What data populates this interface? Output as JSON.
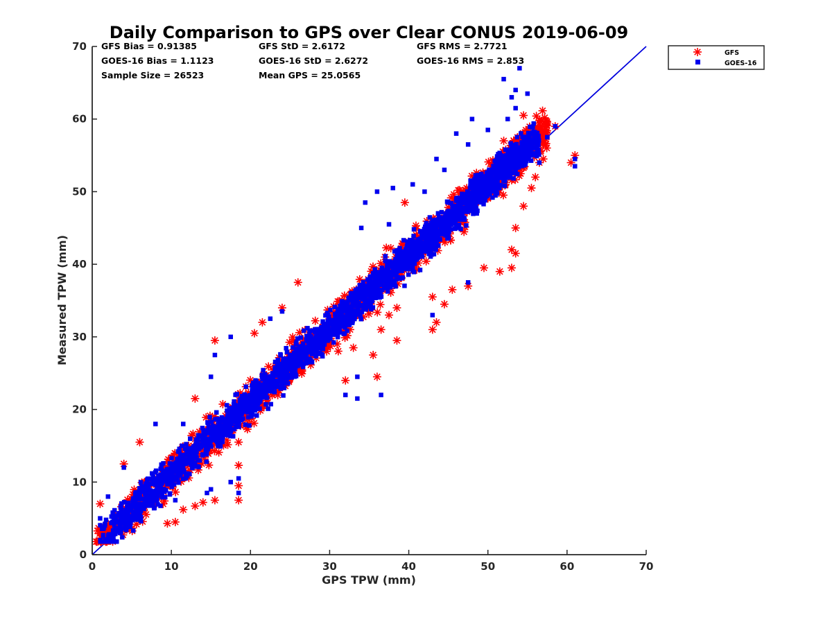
{
  "chart_data": {
    "type": "scatter",
    "title": "Daily Comparison to GPS over Clear CONUS 2019-06-09",
    "xlabel": "GPS TPW (mm)",
    "ylabel": "Measured TPW (mm)",
    "xlim": [
      0,
      70
    ],
    "ylim": [
      0,
      70
    ],
    "xticks": [
      "0",
      "10",
      "20",
      "30",
      "40",
      "50",
      "60",
      "70"
    ],
    "yticks": [
      "0",
      "10",
      "20",
      "30",
      "40",
      "50",
      "60",
      "70"
    ],
    "grid": false,
    "legend_position": "outside top-right",
    "stats": [
      [
        "GFS Bias = 0.91385",
        "GFS StD = 2.6172",
        "GFS RMS = 2.7721"
      ],
      [
        "GOES-16 Bias = 1.1123",
        "GOES-16 StD = 2.6272",
        "GOES-16 RMS = 2.853"
      ],
      [
        "Sample Size = 26523",
        "Mean GPS = 25.0565",
        ""
      ]
    ],
    "reference_line": {
      "name": "1:1 line",
      "color": "#0000dd",
      "x": [
        0,
        70
      ],
      "y": [
        0,
        70
      ]
    },
    "series": [
      {
        "name": "GFS",
        "marker": "asterisk",
        "color": "#ff0000",
        "sample_size": 26523,
        "bias": 0.91385,
        "std": 2.6172,
        "rms": 2.7721,
        "density_band": {
          "x_range": [
            0.5,
            57.5
          ],
          "offset": 1.1,
          "spread": 2.3,
          "count": 1500,
          "seed": 11
        },
        "points": [
          [
            15.5,
            29.5
          ],
          [
            18.5,
            15.5
          ],
          [
            18.5,
            12.3
          ],
          [
            18.5,
            9.5
          ],
          [
            18.5,
            7.5
          ],
          [
            15.5,
            7.5
          ],
          [
            14.0,
            7.2
          ],
          [
            13.0,
            6.7
          ],
          [
            11.5,
            6.2
          ],
          [
            10.5,
            4.5
          ],
          [
            9.5,
            4.3
          ],
          [
            26.0,
            37.5
          ],
          [
            32.0,
            24.0
          ],
          [
            33.0,
            28.5
          ],
          [
            36.0,
            24.5
          ],
          [
            35.5,
            27.5
          ],
          [
            36.5,
            31.0
          ],
          [
            37.5,
            33.0
          ],
          [
            38.5,
            34.0
          ],
          [
            38.5,
            29.5
          ],
          [
            43.0,
            31.0
          ],
          [
            43.5,
            32.0
          ],
          [
            43.0,
            35.5
          ],
          [
            44.5,
            34.5
          ],
          [
            45.5,
            36.5
          ],
          [
            47.5,
            37.0
          ],
          [
            49.5,
            39.5
          ],
          [
            51.5,
            39.0
          ],
          [
            53.0,
            39.5
          ],
          [
            53.5,
            41.5
          ],
          [
            53.5,
            45.0
          ],
          [
            53.0,
            42.0
          ],
          [
            54.5,
            48.0
          ],
          [
            55.5,
            50.5
          ],
          [
            56.0,
            52.0
          ],
          [
            56.5,
            54.0
          ],
          [
            57.0,
            54.5
          ],
          [
            55.0,
            55.5
          ],
          [
            54.5,
            57.5
          ],
          [
            54.5,
            60.5
          ],
          [
            52.0,
            57.0
          ],
          [
            58.5,
            59.0
          ],
          [
            60.5,
            54.0
          ],
          [
            61.0,
            55.0
          ],
          [
            24.0,
            34.0
          ],
          [
            21.5,
            32.0
          ],
          [
            20.5,
            30.5
          ],
          [
            4.0,
            12.5
          ],
          [
            1.0,
            7.0
          ],
          [
            13.0,
            21.5
          ],
          [
            6.0,
            15.5
          ],
          [
            23.5,
            26.0
          ],
          [
            39.5,
            48.5
          ],
          [
            37.0,
            41.0
          ],
          [
            42.5,
            44.5
          ]
        ]
      },
      {
        "name": "GOES-16",
        "marker": "square",
        "color": "#0000ee",
        "sample_size": 26523,
        "bias": 1.1123,
        "std": 2.6272,
        "rms": 2.853,
        "density_band": {
          "x_range": [
            1.0,
            56.5
          ],
          "offset": 1.1,
          "spread": 2.0,
          "count": 2700,
          "seed": 29
        },
        "points": [
          [
            54.0,
            67.0
          ],
          [
            52.0,
            65.5
          ],
          [
            53.5,
            64.0
          ],
          [
            55.0,
            63.5
          ],
          [
            53.0,
            63.0
          ],
          [
            53.5,
            61.5
          ],
          [
            47.5,
            56.5
          ],
          [
            46.0,
            58.0
          ],
          [
            48.0,
            60.0
          ],
          [
            50.0,
            58.5
          ],
          [
            52.5,
            60.0
          ],
          [
            44.5,
            53.0
          ],
          [
            43.5,
            54.5
          ],
          [
            45.0,
            48.5
          ],
          [
            47.5,
            37.5
          ],
          [
            43.0,
            33.0
          ],
          [
            40.0,
            43.0
          ],
          [
            37.5,
            45.5
          ],
          [
            34.0,
            45.0
          ],
          [
            34.5,
            48.5
          ],
          [
            36.0,
            50.0
          ],
          [
            38.0,
            50.5
          ],
          [
            40.5,
            51.0
          ],
          [
            42.0,
            50.0
          ],
          [
            33.5,
            21.5
          ],
          [
            32.0,
            22.0
          ],
          [
            36.5,
            22.0
          ],
          [
            33.5,
            24.5
          ],
          [
            24.0,
            33.5
          ],
          [
            22.5,
            32.5
          ],
          [
            17.5,
            30.0
          ],
          [
            15.5,
            27.5
          ],
          [
            15.0,
            24.5
          ],
          [
            8.0,
            18.0
          ],
          [
            11.5,
            18.0
          ],
          [
            4.0,
            12.0
          ],
          [
            2.0,
            8.0
          ],
          [
            1.0,
            5.0
          ],
          [
            3.5,
            3.0
          ],
          [
            10.5,
            7.5
          ],
          [
            14.5,
            8.5
          ],
          [
            15.0,
            9.0
          ],
          [
            17.5,
            10.0
          ],
          [
            18.5,
            8.5
          ],
          [
            18.5,
            10.5
          ],
          [
            61.0,
            54.5
          ],
          [
            61.0,
            53.5
          ],
          [
            56.5,
            54.0
          ],
          [
            57.5,
            57.5
          ],
          [
            58.5,
            59.0
          ],
          [
            53.5,
            55.0
          ],
          [
            52.5,
            52.5
          ]
        ]
      }
    ]
  }
}
